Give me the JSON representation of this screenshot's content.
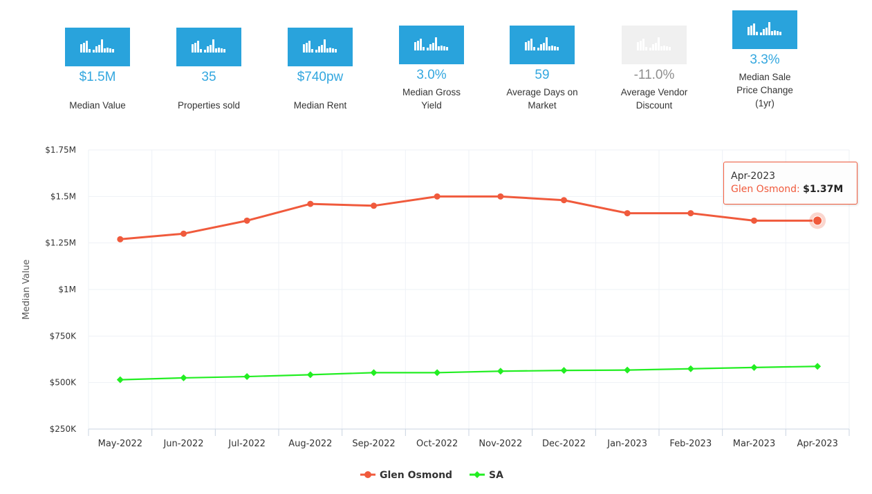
{
  "stats": [
    {
      "value": "$1.5M",
      "label": "Median Value",
      "dim": false
    },
    {
      "value": "35",
      "label": "Properties sold",
      "dim": false
    },
    {
      "value": "$740pw",
      "label": "Median Rent",
      "dim": false
    },
    {
      "value": "3.0%",
      "label": "Median Gross Yield",
      "dim": false
    },
    {
      "value": "59",
      "label": "Average Days on Market",
      "dim": false
    },
    {
      "value": "-11.0%",
      "label": "Average Vendor Discount",
      "dim": true
    },
    {
      "value": "3.3%",
      "label": "Median Sale Price Change (1yr)",
      "dim": false
    }
  ],
  "tooltip": {
    "date": "Apr-2023",
    "series": "Glen Osmond",
    "value": "$1.37M"
  },
  "chart_data": {
    "type": "line",
    "title": "",
    "xlabel": "",
    "ylabel": "Median Value",
    "categories": [
      "May-2022",
      "Jun-2022",
      "Jul-2022",
      "Aug-2022",
      "Sep-2022",
      "Oct-2022",
      "Nov-2022",
      "Dec-2022",
      "Jan-2023",
      "Feb-2023",
      "Mar-2023",
      "Apr-2023"
    ],
    "ylim": [
      250000,
      1750000
    ],
    "yticks": [
      250000,
      500000,
      750000,
      1000000,
      1250000,
      1500000,
      1750000
    ],
    "ytick_labels": [
      "$250K",
      "$500K",
      "$750K",
      "$1M",
      "$1.25M",
      "$1.5M",
      "$1.75M"
    ],
    "grid": true,
    "legend_position": "bottom-center",
    "series": [
      {
        "name": "Glen Osmond",
        "color": "#f05a3c",
        "marker": "circle",
        "values": [
          1270000,
          1300000,
          1370000,
          1460000,
          1450000,
          1500000,
          1500000,
          1480000,
          1410000,
          1410000,
          1370000,
          1370000
        ]
      },
      {
        "name": "SA",
        "color": "#22ee22",
        "marker": "diamond",
        "values": [
          515000,
          525000,
          532000,
          542000,
          553000,
          553000,
          561000,
          565000,
          567000,
          574000,
          581000,
          587000
        ]
      }
    ]
  }
}
